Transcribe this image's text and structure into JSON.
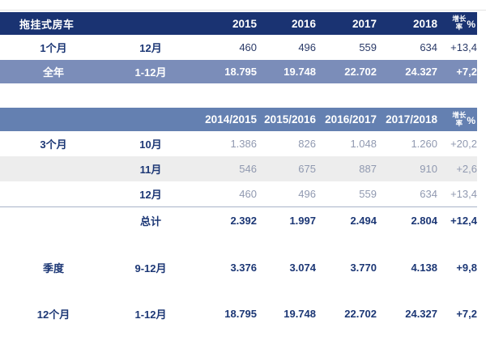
{
  "page_title": "拖挂式房车",
  "colors": {
    "header_dark_navy": "#1a3372",
    "header_slate_blue": "#6480b1",
    "highlight_band_blue": "#7b8db9",
    "stripe_gray": "#ededed",
    "text_navy": "#1c3775",
    "text_muted_blue": "#9099b0",
    "separator_line": "#a9b4c9"
  },
  "growth_header": {
    "label_line1": "增长",
    "label_line2": "率",
    "unit": "%"
  },
  "table1": {
    "title": "拖挂式房车",
    "year_headers": [
      "2015",
      "2016",
      "2017",
      "2018"
    ],
    "rows": [
      {
        "category": "1个月",
        "period": "12月",
        "values": [
          "460",
          "496",
          "559",
          "634"
        ],
        "growth": "+13,4",
        "style": "plain"
      },
      {
        "category": "全年",
        "period": "1-12月",
        "values": [
          "18.795",
          "19.748",
          "22.702",
          "24.327"
        ],
        "growth": "+7,2",
        "style": "highlight"
      }
    ]
  },
  "table2": {
    "year_headers": [
      "2014/2015",
      "2015/2016",
      "2016/2017",
      "2017/2018"
    ],
    "rows": [
      {
        "category": "3个月",
        "period": "10月",
        "values": [
          "1.386",
          "826",
          "1.048",
          "1.260"
        ],
        "growth": "+20,2",
        "style": "muted"
      },
      {
        "category": "",
        "period": "11月",
        "values": [
          "546",
          "675",
          "887",
          "910"
        ],
        "growth": "+2,6",
        "style": "muted stripe"
      },
      {
        "category": "",
        "period": "12月",
        "values": [
          "460",
          "496",
          "559",
          "634"
        ],
        "growth": "+13,4",
        "style": "muted"
      },
      {
        "category": "",
        "period": "总计",
        "values": [
          "2.392",
          "1.997",
          "2.494",
          "2.804"
        ],
        "growth": "+12,4",
        "style": "total sep"
      },
      {
        "category": "季度",
        "period": "9-12月",
        "values": [
          "3.376",
          "3.074",
          "3.770",
          "4.138"
        ],
        "growth": "+9,8",
        "style": "total gap"
      },
      {
        "category": "12个月",
        "period": "1-12月",
        "values": [
          "18.795",
          "19.748",
          "22.702",
          "24.327"
        ],
        "growth": "+7,2",
        "style": "total gap"
      }
    ]
  }
}
